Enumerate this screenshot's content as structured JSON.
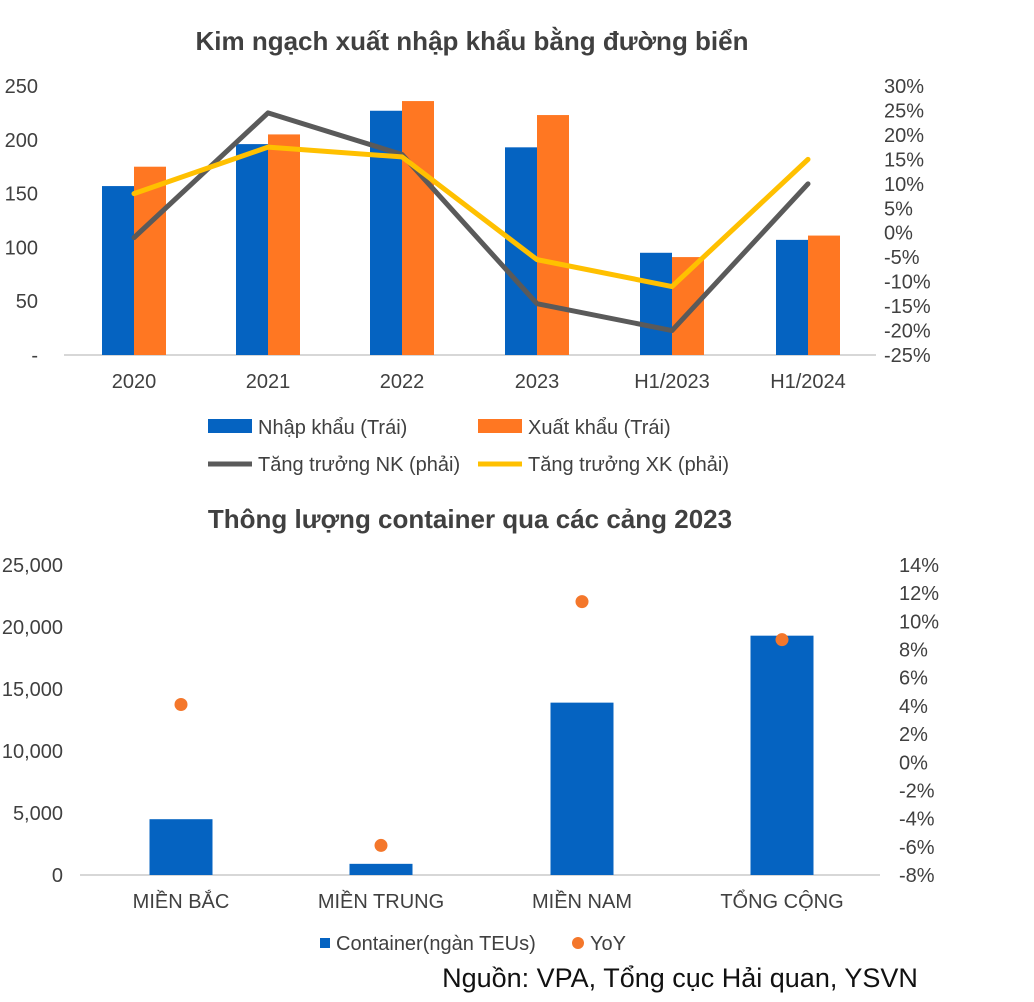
{
  "chart_data": [
    {
      "type": "bar",
      "title": "Kim ngạch xuất nhập khẩu bằng đường biển",
      "categories": [
        "2020",
        "2021",
        "2022",
        "2023",
        "H1/2023",
        "H1/2024"
      ],
      "series": [
        {
          "name": "Nhập khẩu (Trái)",
          "kind": "bar",
          "axis": "left",
          "color": "#0563C1",
          "values": [
            157,
            196,
            227,
            193,
            95,
            107
          ]
        },
        {
          "name": "Xuất khẩu (Trái)",
          "kind": "bar",
          "axis": "left",
          "color": "#FF7722",
          "values": [
            175,
            205,
            236,
            223,
            91,
            111
          ]
        },
        {
          "name": "Tăng trưởng NK (phải)",
          "kind": "line",
          "axis": "right",
          "color": "#5A5A5A",
          "values": [
            -1,
            24.5,
            16,
            -14.5,
            -20,
            10
          ]
        },
        {
          "name": "Tăng trưởng XK (phải)",
          "kind": "line",
          "axis": "right",
          "color": "#FFC000",
          "values": [
            8,
            17.5,
            15.5,
            -5.5,
            -11,
            15
          ]
        }
      ],
      "left_axis": {
        "ylim": [
          0,
          250
        ],
        "ticks": [
          "-",
          "50",
          "100",
          "150",
          "200",
          "250"
        ]
      },
      "right_axis": {
        "ylim": [
          -25,
          30
        ],
        "ticks": [
          "-25%",
          "-20%",
          "-15%",
          "-10%",
          "-5%",
          "0%",
          "5%",
          "10%",
          "15%",
          "20%",
          "25%",
          "30%"
        ]
      },
      "legend_position": "bottom"
    },
    {
      "type": "bar",
      "title": "Thông lượng container qua các cảng 2023",
      "categories": [
        "MIỀN BẮC",
        "MIỀN TRUNG",
        "MIỀN NAM",
        "TỔNG CỘNG"
      ],
      "series": [
        {
          "name": "Container(ngàn TEUs)",
          "kind": "bar",
          "axis": "left",
          "color": "#0563C1",
          "values": [
            4500,
            900,
            13900,
            19300
          ]
        },
        {
          "name": "YoY",
          "kind": "scatter",
          "axis": "right",
          "color": "#F4772B",
          "values": [
            4.1,
            -5.9,
            11.4,
            8.7
          ]
        }
      ],
      "left_axis": {
        "ylim": [
          0,
          25000
        ],
        "ticks": [
          "0",
          "5,000",
          "10,000",
          "15,000",
          "20,000",
          "25,000"
        ]
      },
      "right_axis": {
        "ylim": [
          -8,
          14
        ],
        "ticks": [
          "-8%",
          "-6%",
          "-4%",
          "-2%",
          "0%",
          "2%",
          "4%",
          "6%",
          "8%",
          "10%",
          "12%",
          "14%"
        ]
      },
      "legend_position": "bottom"
    }
  ],
  "source": "Nguồn: VPA, Tổng cục Hải quan, YSVN"
}
